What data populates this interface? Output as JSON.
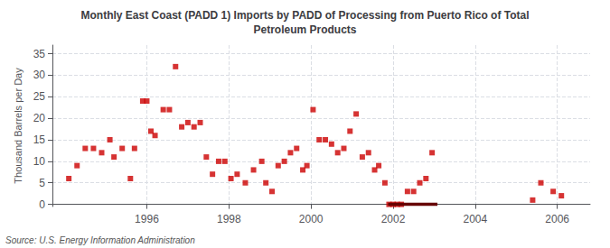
{
  "chart_data": {
    "type": "scatter",
    "title": "Monthly East Coast (PADD 1) Imports by PADD of Processing from Puerto Rico of Total\nPetroleum Products",
    "ylabel": "Thousand Barrels per Day",
    "annotations": [
      "Source: U.S. Energy Information Administration"
    ],
    "xlim": [
      1993.7,
      2006.8
    ],
    "xticks": [
      1996,
      1998,
      2000,
      2002,
      2004,
      2006
    ],
    "ylim": [
      -0.5,
      37
    ],
    "yticks": [
      0,
      5,
      10,
      15,
      20,
      25,
      30,
      35
    ],
    "grid": true,
    "series": [
      {
        "type": "scatter",
        "color": "#cc0000",
        "marker": "square",
        "x": [
          1994.1,
          1994.3,
          1994.5,
          1994.7,
          1994.9,
          1995.1,
          1995.2,
          1995.4,
          1995.6,
          1995.7,
          1995.9,
          1996.0,
          1996.1,
          1996.2,
          1996.4,
          1996.55,
          1996.7,
          1996.85,
          1997.0,
          1997.15,
          1997.3,
          1997.45,
          1997.6,
          1997.75,
          1997.9,
          1998.05,
          1998.2,
          1998.4,
          1998.6,
          1998.8,
          1998.9,
          1999.05,
          1999.2,
          1999.35,
          1999.5,
          1999.65,
          1999.8,
          1999.9,
          2000.05,
          2000.2,
          2000.35,
          2000.5,
          2000.65,
          2000.8,
          2000.95,
          2001.1,
          2001.25,
          2001.4,
          2001.55,
          2001.65,
          2001.8,
          2001.9,
          2002.0,
          2002.1,
          2002.2,
          2002.35,
          2002.5,
          2002.65,
          2002.8,
          2002.95,
          2005.4,
          2005.6,
          2005.9,
          2006.1
        ],
        "values": [
          6,
          9,
          13,
          13,
          12,
          15,
          11,
          13,
          6,
          13,
          24,
          24,
          17,
          16,
          22,
          22,
          32,
          18,
          19,
          18,
          19,
          11,
          7,
          10,
          10,
          6,
          7,
          5,
          8,
          10,
          5,
          3,
          9,
          10,
          12,
          13,
          8,
          9,
          22,
          15,
          15,
          14,
          12,
          13,
          17,
          21,
          11,
          12,
          8,
          9,
          5,
          0,
          0,
          0,
          0,
          3,
          3,
          5,
          6,
          12,
          1,
          5,
          3,
          2
        ]
      },
      {
        "type": "line",
        "color": "#660000",
        "line_style": "solid",
        "x": [
          2001.88,
          2003.08
        ],
        "values": [
          0,
          0
        ]
      }
    ]
  }
}
